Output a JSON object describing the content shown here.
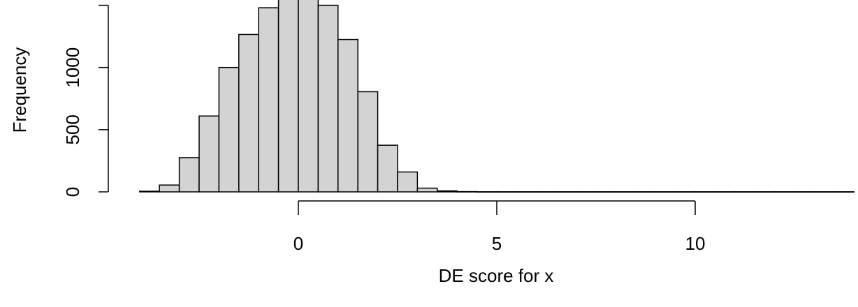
{
  "chart_data": {
    "type": "bar",
    "title": "",
    "xlabel": "DE score for  x",
    "ylabel": "Frequency",
    "bin_edges": [
      -4,
      -3.5,
      -3,
      -2.5,
      -2,
      -1.5,
      -1,
      -0.5,
      0,
      0.5,
      1,
      1.5,
      2,
      2.5,
      3,
      3.5,
      4,
      4.5,
      5,
      5.5,
      6,
      6.5,
      7,
      7.5,
      8,
      8.5,
      9,
      9.5,
      10,
      10.5,
      11,
      11.5,
      12,
      12.5,
      13,
      13.5,
      14
    ],
    "values": [
      5,
      55,
      275,
      610,
      1000,
      1265,
      1480,
      1600,
      1600,
      1500,
      1225,
      805,
      375,
      160,
      30,
      8,
      2,
      1,
      1,
      1,
      1,
      1,
      1,
      1,
      1,
      1,
      1,
      1,
      1,
      1,
      1,
      1,
      1,
      1,
      1,
      1
    ],
    "x_ticks": [
      0,
      5,
      10
    ],
    "x_tick_labels": [
      "0",
      "5",
      "10"
    ],
    "y_ticks": [
      0,
      500,
      1000,
      1500
    ],
    "y_tick_labels": [
      "0",
      "500",
      "1000",
      ""
    ],
    "xlim": [
      -4,
      14
    ],
    "ylim": [
      0,
      1600
    ],
    "bar_color": "#d3d3d3",
    "grid": false,
    "legend": "none"
  }
}
